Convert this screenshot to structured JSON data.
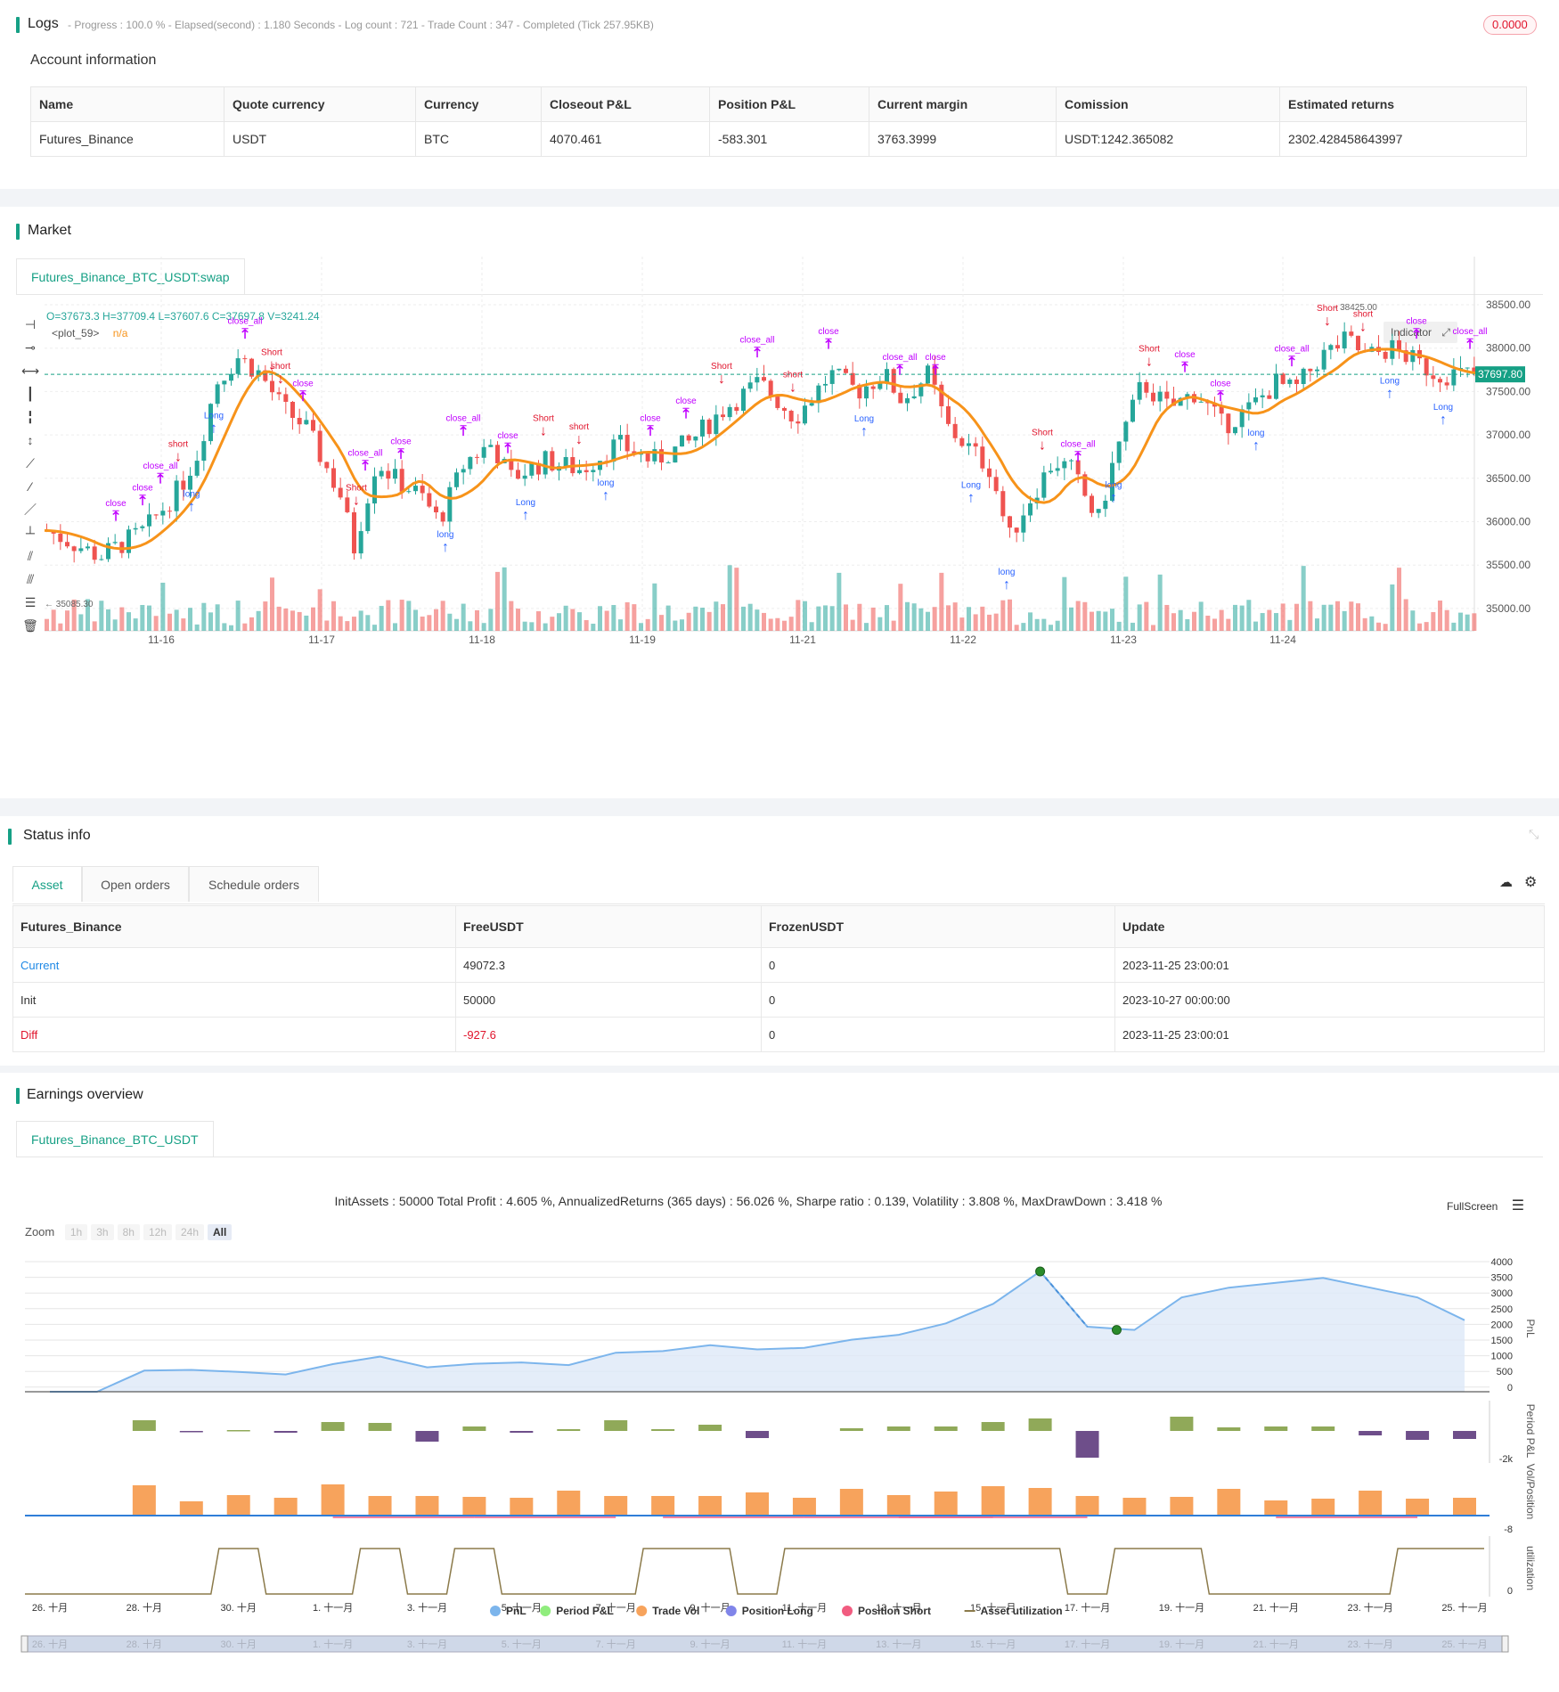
{
  "logs": {
    "title": "Logs",
    "status_line": "- Progress : 100.0 % - Elapsed(second) : 1.180  Seconds - Log count : 721 - Trade Count : 347 - Completed (Tick 257.95KB)",
    "badge": "0.0000",
    "account_title": "Account information",
    "columns": [
      "Name",
      "Quote currency",
      "Currency",
      "Closeout P&L",
      "Position P&L",
      "Current margin",
      "Comission",
      "Estimated returns"
    ],
    "row": [
      "Futures_Binance",
      "USDT",
      "BTC",
      "4070.461",
      "-583.301",
      "3763.3999",
      "USDT:1242.365082",
      "2302.428458643997"
    ]
  },
  "market": {
    "title": "Market",
    "tab": "Futures_Binance_BTC_USDT:swap",
    "ohlc": "O=37673.3 H=37709.4 L=37607.6 C=37697.8 V=3241.24",
    "plot_label": "<plot_59>",
    "plot_value": "n/a",
    "indicator_button": "Indicator",
    "price_ticks": [
      "38500.00",
      "38000.00",
      "37500.00",
      "37000.00",
      "36500.00",
      "36000.00",
      "35500.00",
      "35000.00"
    ],
    "last_price": "37697.80",
    "high_label": "38425.00",
    "low_label": "35085.30",
    "date_ticks": [
      "11-16",
      "11-17",
      "11-18",
      "11-19",
      "11-21",
      "11-22",
      "11-23",
      "11-24"
    ]
  },
  "status": {
    "title": "Status info",
    "tabs": [
      "Asset",
      "Open orders",
      "Schedule orders"
    ],
    "columns": [
      "Futures_Binance",
      "FreeUSDT",
      "FrozenUSDT",
      "Update"
    ],
    "rows": [
      {
        "label": "Current",
        "free": "49072.3",
        "frozen": "0",
        "update": "2023-11-25 23:00:01"
      },
      {
        "label": "Init",
        "free": "50000",
        "frozen": "0",
        "update": "2023-10-27 00:00:00"
      },
      {
        "label": "Diff",
        "free": "-927.6",
        "frozen": "0",
        "update": "2023-11-25 23:00:01"
      }
    ]
  },
  "earnings": {
    "title": "Earnings overview",
    "tab": "Futures_Binance_BTC_USDT",
    "summary": "InitAssets : 50000 Total Profit : 4.605 %, AnnualizedReturns (365 days) : 56.026 %, Sharpe ratio : 0.139, Volatility : 3.808 %, MaxDrawDown : 3.418 %",
    "fullscreen": "FullScreen",
    "zoom_label": "Zoom",
    "zoom_options": [
      "1h",
      "3h",
      "8h",
      "12h",
      "24h",
      "All"
    ],
    "pnl_ticks": [
      "4000",
      "3500",
      "3000",
      "2500",
      "2000",
      "1500",
      "1000",
      "500",
      "0"
    ],
    "pnl_axis": "PnL",
    "period_axis": "Period P&L",
    "period_tick": "-2k",
    "vol_axis": "Vol/Position",
    "vol_tick": "-8",
    "util_axis": "utilization",
    "util_tick": "0",
    "date_ticks": [
      "26. 十月",
      "28. 十月",
      "30. 十月",
      "1. 十一月",
      "3. 十一月",
      "5. 十一月",
      "7. 十一月",
      "9. 十一月",
      "11. 十一月",
      "13. 十一月",
      "15. 十一月",
      "17. 十一月",
      "19. 十一月",
      "21. 十一月",
      "23. 十一月",
      "25. 十一月"
    ],
    "legend": [
      "PnL",
      "Period P&L",
      "Trade Vol",
      "Position Long",
      "Position Short",
      "Asset utilization"
    ]
  },
  "colors": {
    "accent": "#16a085",
    "up": "#26a69a",
    "down": "#ef5350",
    "ma": "#f7931a",
    "signal_buy": "#2962ff",
    "signal_close": "#c000ff",
    "signal_sell": "#e0142c",
    "pnl_line": "#7cb5ec",
    "period_pos": "#90a959",
    "period_neg": "#6e4e8a",
    "trade_vol": "#f7a35c",
    "util": "#8b7a4a"
  }
}
